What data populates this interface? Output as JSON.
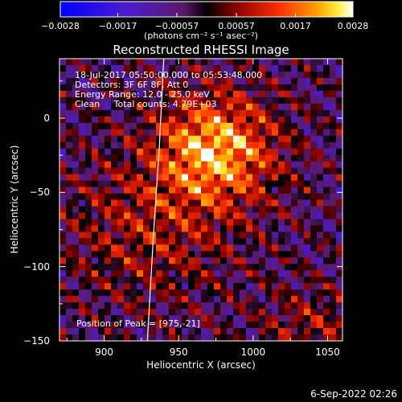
{
  "chart_data": {
    "type": "heatmap",
    "title": "Reconstructed RHESSI Image",
    "xlabel": "Heliocentric X (arcsec)",
    "ylabel": "Heliocentric Y (arcsec)",
    "xlim": [
      870,
      1060
    ],
    "ylim": [
      -150,
      40
    ],
    "xticks": [
      "900",
      "950",
      "1000",
      "1050"
    ],
    "yticks": [
      "0",
      "−50",
      "−100",
      "−150"
    ],
    "colorbar": {
      "range": [
        -0.0028,
        0.0028
      ],
      "ticks": [
        "−0.0028",
        "−0.0017",
        "−0.00057",
        "0.00057",
        "0.0017",
        "0.0028"
      ],
      "units_label": "(photons cm⁻² s⁻¹ asec⁻²)"
    },
    "annotations": [
      "18-Jul-2017 05:50:00.000 to 05:53:48.000",
      "Detectors: 3F 6F 8F, Att 0",
      "Energy Range: 12.0 - 25.0 keV",
      "Clean     Total counts: 4.79E+03"
    ],
    "peak_label": "Position of Peak = [975,-21]",
    "peak": [
      975,
      -21
    ],
    "limb_points": [
      [
        940,
        40
      ],
      [
        937,
        -20
      ],
      [
        933,
        -80
      ],
      [
        929,
        -150
      ]
    ],
    "date_stamp": "6-Sep-2022 02:26"
  },
  "colors": {
    "background": "#000000",
    "text": "#ffffff",
    "limb": "#ffffff"
  }
}
